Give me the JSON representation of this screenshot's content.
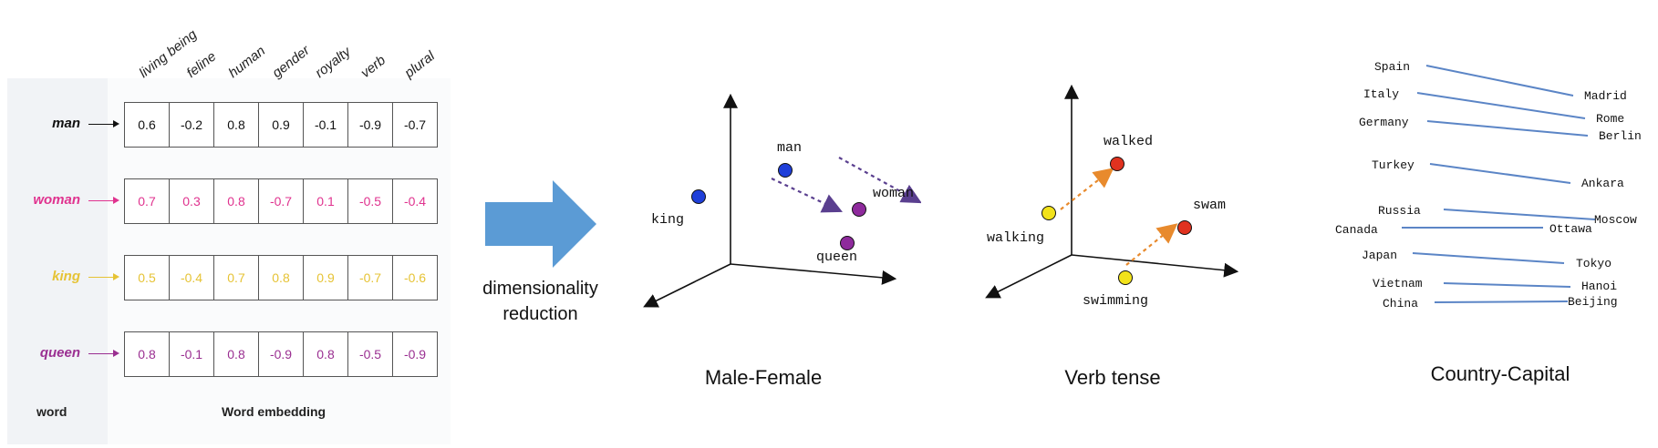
{
  "embedding": {
    "features": [
      "living being",
      "feline",
      "human",
      "gender",
      "royalty",
      "verb",
      "plural"
    ],
    "rows": [
      {
        "word": "man",
        "color": "#111111",
        "values": [
          "0.6",
          "-0.2",
          "0.8",
          "0.9",
          "-0.1",
          "-0.9",
          "-0.7"
        ]
      },
      {
        "word": "woman",
        "color": "#e0338f",
        "values": [
          "0.7",
          "0.3",
          "0.8",
          "-0.7",
          "0.1",
          "-0.5",
          "-0.4"
        ]
      },
      {
        "word": "king",
        "color": "#e6c335",
        "values": [
          "0.5",
          "-0.4",
          "0.7",
          "0.8",
          "0.9",
          "-0.7",
          "-0.6"
        ]
      },
      {
        "word": "queen",
        "color": "#9a2f91",
        "values": [
          "0.8",
          "-0.1",
          "0.8",
          "-0.9",
          "0.8",
          "-0.5",
          "-0.9"
        ]
      }
    ],
    "footer_word": "word",
    "footer_embedding": "Word embedding"
  },
  "transition": {
    "label_line1": "dimensionality",
    "label_line2": "reduction",
    "arrow_color": "#5b9bd5"
  },
  "male_female": {
    "caption": "Male-Female",
    "points": {
      "man": {
        "label": "man",
        "color": "#1f3fd9"
      },
      "woman": {
        "label": "woman",
        "color": "#8e2a9c"
      },
      "king": {
        "label": "king",
        "color": "#1f3fd9"
      },
      "queen": {
        "label": "queen",
        "color": "#8e2a9c"
      }
    },
    "arrow_color": "#5a3f8f"
  },
  "verb_tense": {
    "caption": "Verb tense",
    "points": {
      "walking": {
        "label": "walking",
        "color": "#f2e21b"
      },
      "walked": {
        "label": "walked",
        "color": "#e0321f"
      },
      "swimming": {
        "label": "swimming",
        "color": "#f2e21b"
      },
      "swam": {
        "label": "swam",
        "color": "#e0321f"
      }
    },
    "arrow_color": "#e88a2d"
  },
  "country_capital": {
    "caption": "Country-Capital",
    "line_color": "#5b85c6",
    "pairs": [
      {
        "country": "Spain",
        "capital": "Madrid"
      },
      {
        "country": "Italy",
        "capital": "Rome"
      },
      {
        "country": "Germany",
        "capital": "Berlin"
      },
      {
        "country": "Turkey",
        "capital": "Ankara"
      },
      {
        "country": "Russia",
        "capital": "Moscow"
      },
      {
        "country": "Canada",
        "capital": "Ottawa"
      },
      {
        "country": "Japan",
        "capital": "Tokyo"
      },
      {
        "country": "Vietnam",
        "capital": "Hanoi"
      },
      {
        "country": "China",
        "capital": "Beijing"
      }
    ]
  }
}
